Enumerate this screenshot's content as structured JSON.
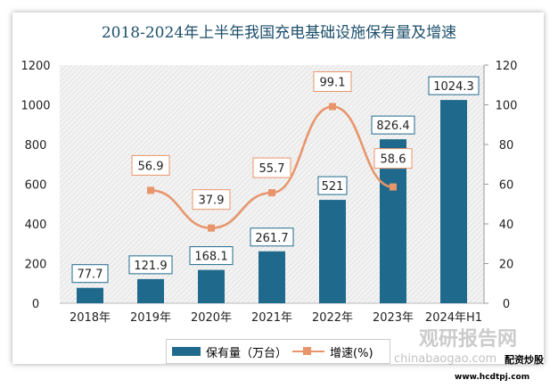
{
  "chart_data": {
    "type": "bar+line",
    "title": "2018-2024年上半年我国充电基础设施保有量及增速",
    "categories": [
      "2018年",
      "2019年",
      "2020年",
      "2021年",
      "2022年",
      "2023年",
      "2024年H1"
    ],
    "series": [
      {
        "name": "保有量（万台）",
        "type": "bar",
        "axis": "left",
        "values": [
          77.7,
          121.9,
          168.1,
          261.7,
          521,
          826.4,
          1024.3
        ],
        "color": "#1f6a8c"
      },
      {
        "name": "增速(%)",
        "type": "line",
        "axis": "right",
        "values": [
          null,
          56.9,
          37.9,
          55.7,
          99.1,
          58.6,
          null
        ],
        "color": "#e8956b"
      }
    ],
    "y_left": {
      "range": [
        0,
        1200
      ],
      "ticks": [
        0,
        200,
        400,
        600,
        800,
        1000,
        1200
      ]
    },
    "y_right": {
      "range": [
        0,
        120
      ],
      "ticks": [
        0,
        20,
        40,
        60,
        80,
        100,
        120
      ]
    },
    "legend_position": "bottom",
    "grid": false
  },
  "watermark": {
    "site": "观研报告网",
    "url": "chinabaogao.com",
    "badge": "配资炒股",
    "badge_url": "www.hcdtpj.com"
  }
}
